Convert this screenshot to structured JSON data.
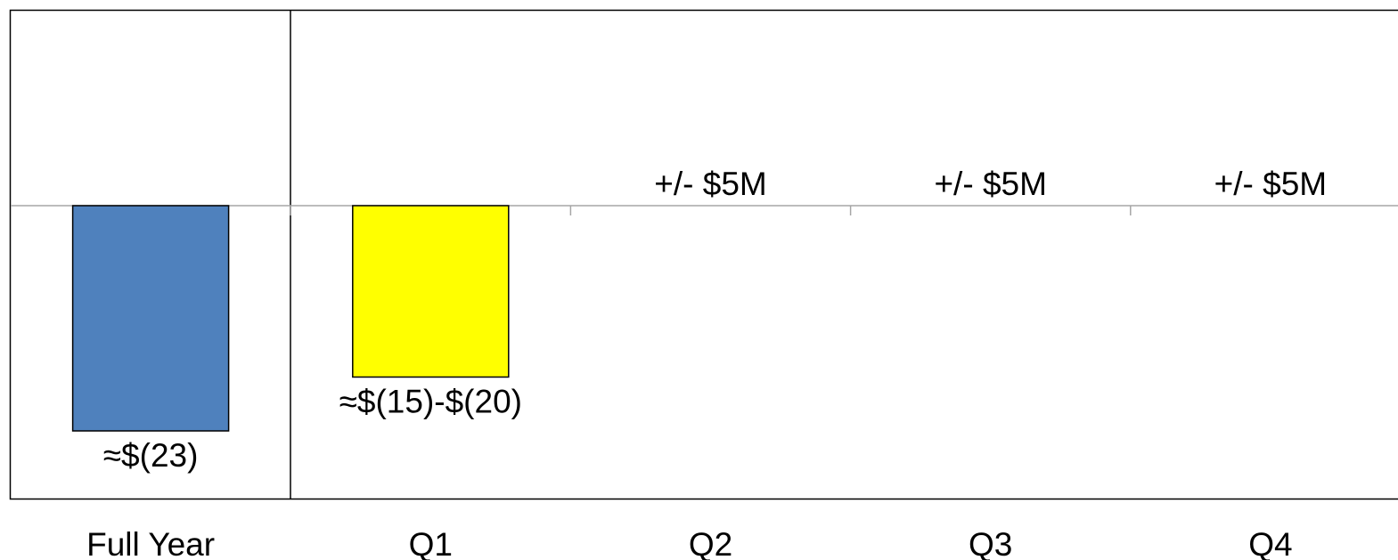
{
  "chart_data": {
    "type": "bar",
    "categories": [
      "Full Year",
      "Q1",
      "Q2",
      "Q3",
      "Q4"
    ],
    "values": [
      -23,
      -17.5,
      null,
      null,
      null
    ],
    "data_labels": [
      "≈$(23)",
      "≈$(15)-$(20)",
      "+/- $5M",
      "+/- $5M",
      "+/- $5M"
    ],
    "title": "",
    "xlabel": "",
    "ylabel": "",
    "ylim": [
      -30,
      20
    ],
    "grid": false,
    "legend": "none",
    "colors": {
      "full_year": "#4f81bd",
      "q1": "#ffff00",
      "axis": "#a6a6a6",
      "frame": "#000000"
    }
  }
}
